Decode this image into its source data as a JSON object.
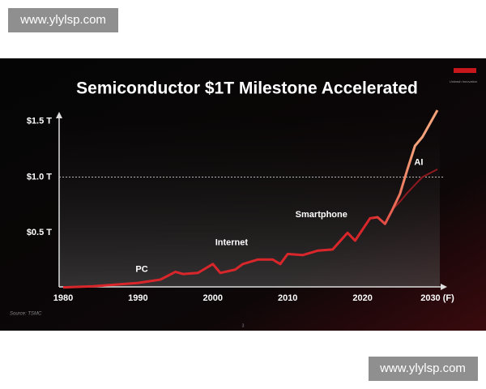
{
  "watermark_top": "www.ylylsp.com",
  "watermark_bottom": "www.ylylsp.com",
  "slide": {
    "tagline": "Unleash Innovation",
    "source": "Source: TSMC",
    "page_number": "3"
  },
  "chart_data": {
    "type": "line",
    "title": "Semiconductor $1T Milestone Accelerated",
    "x": [
      1980,
      1984,
      1988,
      1990,
      1993,
      1995,
      1996,
      1998,
      2000,
      2001,
      2003,
      2004,
      2006,
      2008,
      2009,
      2010,
      2012,
      2014,
      2016,
      2018,
      2019,
      2021,
      2022,
      2023,
      2024,
      2025,
      2026,
      2027,
      2028,
      2030
    ],
    "series": [
      {
        "color": "#d9262b",
        "highlight_color": "#f6a27a",
        "values": [
          0.01,
          0.02,
          0.04,
          0.05,
          0.08,
          0.15,
          0.13,
          0.14,
          0.22,
          0.14,
          0.17,
          0.22,
          0.26,
          0.26,
          0.22,
          0.31,
          0.3,
          0.34,
          0.35,
          0.5,
          0.43,
          0.63,
          0.64,
          0.58,
          0.71,
          0.85,
          1.07,
          1.28,
          1.36,
          1.6
        ]
      },
      {
        "color": "#8e1a1f",
        "values": [
          null,
          null,
          null,
          null,
          null,
          null,
          null,
          null,
          null,
          null,
          null,
          null,
          null,
          null,
          null,
          null,
          null,
          null,
          null,
          null,
          null,
          null,
          null,
          null,
          0.71,
          0.78,
          0.86,
          0.93,
          1.0,
          1.07
        ]
      }
    ],
    "xlim": [
      1980,
      2030
    ],
    "xticks": [
      1980,
      1990,
      2000,
      2010,
      2020,
      {
        "value": 2030,
        "label": "2030 (F)"
      }
    ],
    "ylim": [
      0,
      1.6
    ],
    "yticks": [
      {
        "value": 0.5,
        "label": "$0.5 T"
      },
      {
        "value": 1.0,
        "label": "$1.0 T"
      },
      {
        "value": 1.5,
        "label": "$1.5 T"
      }
    ],
    "dashed_line": 1.0,
    "annotations": [
      {
        "text": "PC",
        "x": 1990.5,
        "y": 0.17
      },
      {
        "text": "Internet",
        "x": 2002.5,
        "y": 0.41
      },
      {
        "text": "Smartphone",
        "x": 2014.5,
        "y": 0.66
      },
      {
        "text": "AI",
        "x": 2027.5,
        "y": 1.13
      }
    ]
  }
}
